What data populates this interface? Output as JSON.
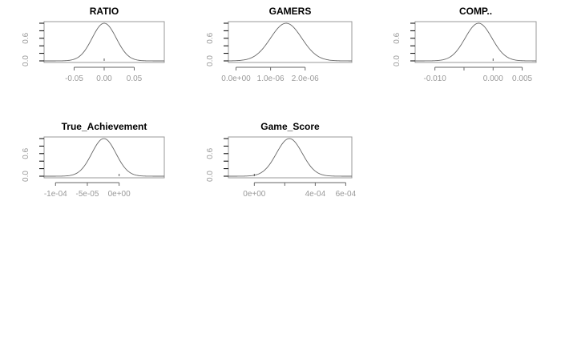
{
  "chart_data": [
    {
      "type": "line",
      "title": "RATIO",
      "xlabel": "",
      "ylabel": "",
      "xlim": [
        -0.1,
        0.1
      ],
      "ylim": [
        0,
        1
      ],
      "curve": {
        "shape": "gaussian",
        "mean": 0.0,
        "sd": 0.02,
        "peak": 1.0
      },
      "x_ticks": [
        {
          "value": -0.05,
          "label": "-0.05"
        },
        {
          "value": 0.0,
          "label": "0.00"
        },
        {
          "value": 0.05,
          "label": "0.05"
        }
      ],
      "y_ticks": [
        {
          "value": 0.0,
          "label": "0.0"
        },
        {
          "value": 0.6,
          "label": "0.6"
        }
      ],
      "y_minor_ticks": [
        0.0,
        0.2,
        0.4,
        0.6,
        0.8,
        1.0
      ],
      "markers": [
        0.0
      ],
      "grid": false,
      "line_color": "#666666"
    },
    {
      "type": "line",
      "title": "GAMERS",
      "xlabel": "",
      "ylabel": "",
      "xlim": [
        -2.2e-07,
        3.35e-06
      ],
      "ylim": [
        0,
        1
      ],
      "curve": {
        "shape": "gaussian",
        "mean": 1.45e-06,
        "sd": 4.5e-07,
        "peak": 1.0
      },
      "x_ticks": [
        {
          "value": 0,
          "label": "0.0e+00"
        },
        {
          "value": 1e-06,
          "label": "1.0e-06"
        },
        {
          "value": 2e-06,
          "label": "2.0e-06"
        }
      ],
      "y_ticks": [
        {
          "value": 0.0,
          "label": "0.0"
        },
        {
          "value": 0.6,
          "label": "0.6"
        }
      ],
      "y_minor_ticks": [
        0.0,
        0.2,
        0.4,
        0.6,
        0.8,
        1.0
      ],
      "markers": [],
      "grid": false,
      "line_color": "#666666"
    },
    {
      "type": "line",
      "title": "COMP..",
      "xlabel": "",
      "ylabel": "",
      "xlim": [
        -0.0134,
        0.0074
      ],
      "ylim": [
        0,
        1
      ],
      "curve": {
        "shape": "gaussian",
        "mean": -0.0025,
        "sd": 0.0023,
        "peak": 1.0
      },
      "x_ticks": [
        {
          "value": -0.01,
          "label": "-0.010"
        },
        {
          "value": -0.005,
          "label": ""
        },
        {
          "value": 0.0,
          "label": "0.000"
        },
        {
          "value": 0.005,
          "label": "0.005"
        }
      ],
      "y_ticks": [
        {
          "value": 0.0,
          "label": "0.0"
        },
        {
          "value": 0.6,
          "label": "0.6"
        }
      ],
      "y_minor_ticks": [
        0.0,
        0.2,
        0.4,
        0.6,
        0.8,
        1.0
      ],
      "markers": [
        0.0
      ],
      "grid": false,
      "line_color": "#666666"
    },
    {
      "type": "line",
      "title": "True_Achievement",
      "xlabel": "",
      "ylabel": "",
      "xlim": [
        -0.000118,
        7.1e-05
      ],
      "ylim": [
        0,
        1
      ],
      "curve": {
        "shape": "gaussian",
        "mean": -2.4e-05,
        "sd": 1.9e-05,
        "peak": 1.0
      },
      "x_ticks": [
        {
          "value": -0.0001,
          "label": "-1e-04"
        },
        {
          "value": -5e-05,
          "label": "-5e-05"
        },
        {
          "value": 0.0,
          "label": "0e+00"
        }
      ],
      "y_ticks": [
        {
          "value": 0.0,
          "label": "0.0"
        },
        {
          "value": 0.6,
          "label": "0.6"
        }
      ],
      "y_minor_ticks": [
        0.0,
        0.2,
        0.4,
        0.6,
        0.8,
        1.0
      ],
      "markers": [
        0.0
      ],
      "grid": false,
      "line_color": "#666666"
    },
    {
      "type": "line",
      "title": "Game_Score",
      "xlabel": "",
      "ylabel": "",
      "xlim": [
        -0.00017,
        0.00064
      ],
      "ylim": [
        0,
        1
      ],
      "curve": {
        "shape": "gaussian",
        "mean": 0.00023,
        "sd": 8.5e-05,
        "peak": 1.0
      },
      "x_ticks": [
        {
          "value": 0.0,
          "label": "0e+00"
        },
        {
          "value": 0.0002,
          "label": ""
        },
        {
          "value": 0.0004,
          "label": "4e-04"
        },
        {
          "value": 0.0006,
          "label": "6e-04"
        }
      ],
      "y_ticks": [
        {
          "value": 0.0,
          "label": "0.0"
        },
        {
          "value": 0.6,
          "label": "0.6"
        }
      ],
      "y_minor_ticks": [
        0.0,
        0.2,
        0.4,
        0.6,
        0.8,
        1.0
      ],
      "markers": [
        0.0
      ],
      "grid": false,
      "line_color": "#666666"
    }
  ]
}
